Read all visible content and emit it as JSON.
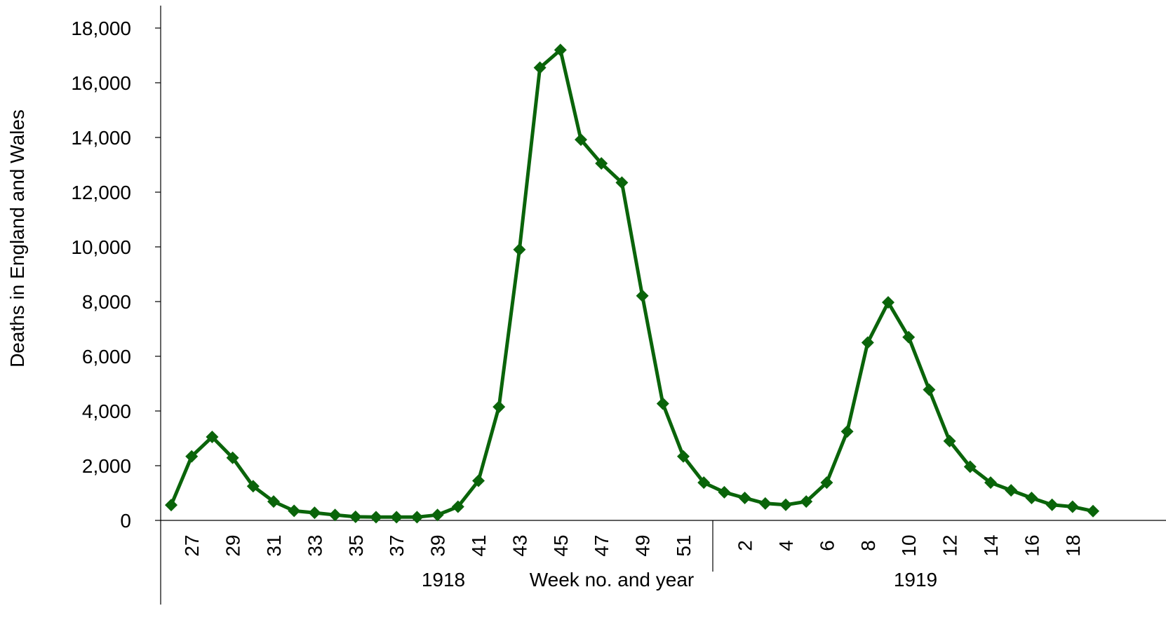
{
  "chart_data": {
    "type": "line",
    "title": "",
    "xlabel": "Week no. and year",
    "ylabel": "Deaths in England and Wales",
    "ylim": [
      0,
      18000
    ],
    "yticks": [
      0,
      2000,
      4000,
      6000,
      8000,
      10000,
      12000,
      14000,
      16000,
      18000
    ],
    "ytick_labels": [
      "0",
      "2,000",
      "4,000",
      "6,000",
      "8,000",
      "10,000",
      "12,000",
      "14,000",
      "16,000",
      "18,000"
    ],
    "grid": false,
    "years": [
      {
        "label": "1918",
        "weeks": [
          26,
          27,
          28,
          29,
          30,
          31,
          32,
          33,
          34,
          35,
          36,
          37,
          38,
          39,
          40,
          41,
          42,
          43,
          44,
          45,
          46,
          47,
          48,
          49,
          50,
          51,
          52
        ]
      },
      {
        "label": "1919",
        "weeks": [
          1,
          2,
          3,
          4,
          5,
          6,
          7,
          8,
          9,
          10,
          11,
          12,
          13,
          14,
          15,
          16,
          17,
          18,
          19
        ]
      }
    ],
    "x_tick_labels": [
      "27",
      "29",
      "31",
      "33",
      "35",
      "37",
      "39",
      "41",
      "43",
      "45",
      "47",
      "49",
      "51",
      "2",
      "4",
      "6",
      "8",
      "10",
      "12",
      "14",
      "16",
      "18"
    ],
    "series": [
      {
        "name": "",
        "color": "#0a640a",
        "marker": "diamond",
        "x": [
          "1918-26",
          "1918-27",
          "1918-28",
          "1918-29",
          "1918-30",
          "1918-31",
          "1918-32",
          "1918-33",
          "1918-34",
          "1918-35",
          "1918-36",
          "1918-37",
          "1918-38",
          "1918-39",
          "1918-40",
          "1918-41",
          "1918-42",
          "1918-43",
          "1918-44",
          "1918-45",
          "1918-46",
          "1918-47",
          "1918-48",
          "1918-49",
          "1918-50",
          "1918-51",
          "1918-52",
          "1919-1",
          "1919-2",
          "1919-3",
          "1919-4",
          "1919-5",
          "1919-6",
          "1919-7",
          "1919-8",
          "1919-9",
          "1919-10",
          "1919-11",
          "1919-12",
          "1919-13",
          "1919-14",
          "1919-15",
          "1919-16",
          "1919-17",
          "1919-18",
          "1919-19"
        ],
        "values": [
          560,
          2340,
          3050,
          2290,
          1250,
          690,
          350,
          280,
          200,
          130,
          120,
          120,
          120,
          200,
          500,
          1450,
          4150,
          9900,
          16550,
          17200,
          13920,
          13050,
          12350,
          8210,
          4270,
          2340,
          1380,
          1030,
          820,
          620,
          570,
          690,
          1380,
          3250,
          6500,
          7970,
          6700,
          4780,
          2900,
          1960,
          1380,
          1100,
          820,
          570,
          500,
          340
        ]
      }
    ]
  }
}
